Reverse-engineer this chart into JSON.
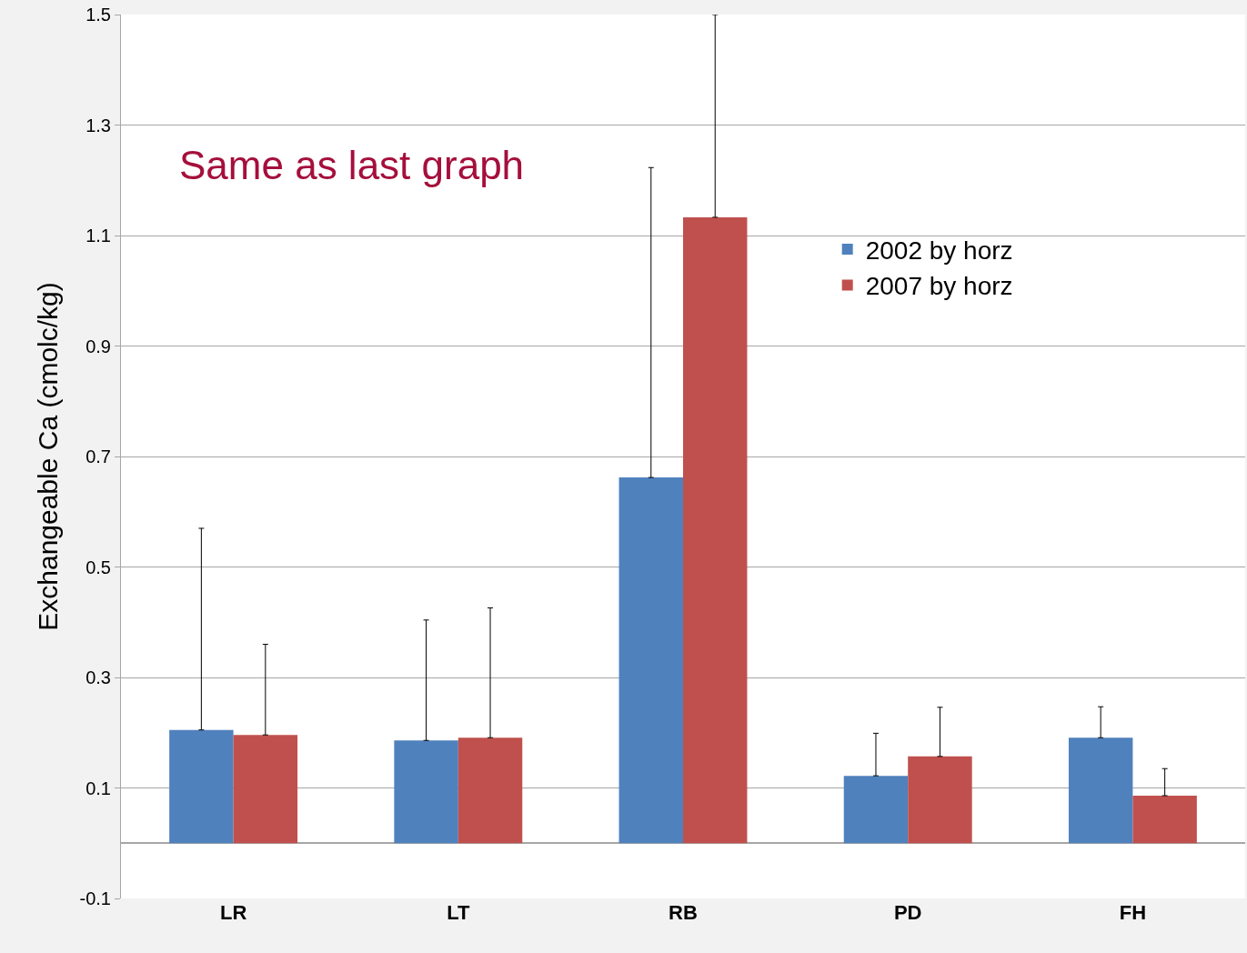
{
  "chart_data": {
    "type": "bar",
    "ylabel": "Exchangeable Ca (cmolc/kg)",
    "categories": [
      "LR",
      "LT",
      "RB",
      "PD",
      "FH"
    ],
    "series": [
      {
        "name": "2002 by horz",
        "color": "#4f81bd",
        "values": [
          0.205,
          0.186,
          0.662,
          0.122,
          0.191
        ],
        "errors": [
          [
            0.205,
            0.57
          ],
          [
            0.186,
            0.404
          ],
          [
            0.662,
            1.223
          ],
          [
            0.122,
            0.199
          ],
          [
            0.191,
            0.247
          ]
        ]
      },
      {
        "name": "2007 by horz",
        "color": "#c0504d",
        "values": [
          0.196,
          0.191,
          1.133,
          0.157,
          0.086
        ],
        "errors": [
          [
            0.196,
            0.36
          ],
          [
            0.191,
            0.426
          ],
          [
            1.133,
            1.5
          ],
          [
            0.157,
            0.246
          ],
          [
            0.086,
            0.135
          ]
        ]
      }
    ],
    "ylim": [
      -0.1,
      1.5
    ],
    "yticks": [
      -0.1,
      0.1,
      0.3,
      0.5,
      0.7,
      0.9,
      1.1,
      1.3,
      1.5
    ],
    "grid": "y",
    "legend": "right",
    "annotations": [
      "Same as last graph"
    ]
  }
}
